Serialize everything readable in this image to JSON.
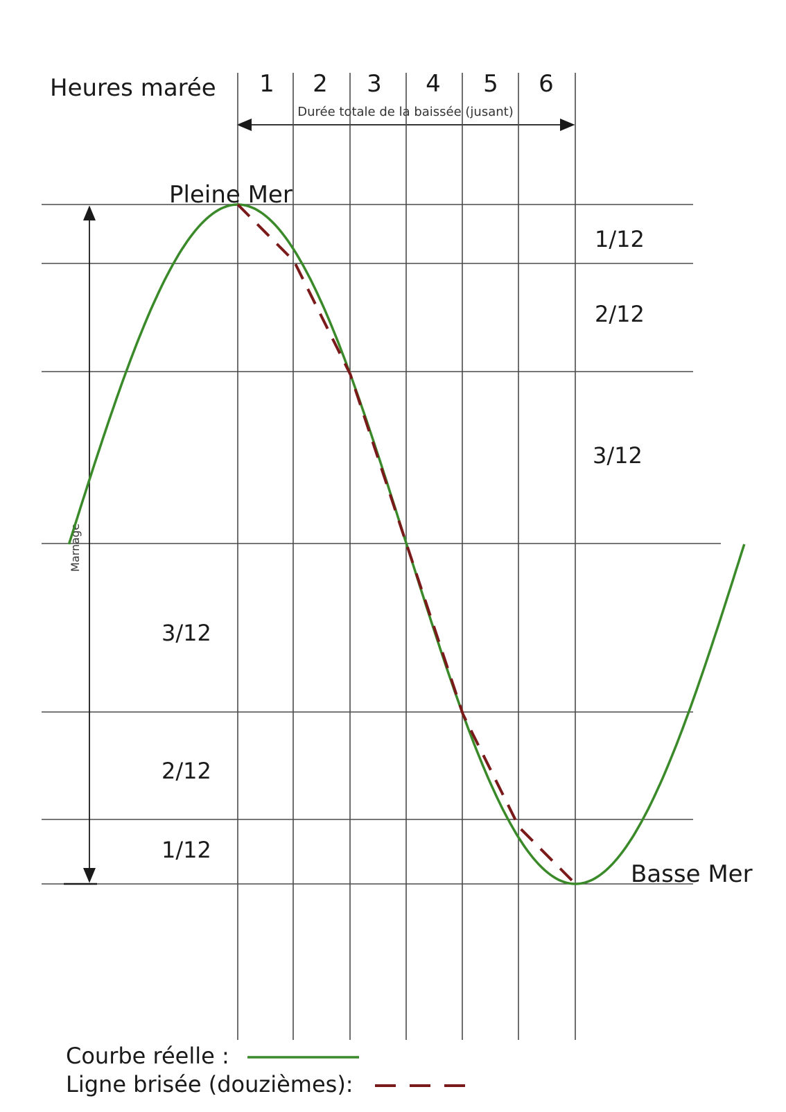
{
  "header": {
    "title": "Heures marée",
    "hours": [
      "1",
      "2",
      "3",
      "4",
      "5",
      "6"
    ],
    "duration_label": "Durée totale de la baissée (jusant)"
  },
  "labels": {
    "high_tide": "Pleine Mer",
    "low_tide": "Basse Mer",
    "range": "Marnage"
  },
  "fractions_right": [
    "1/12",
    "2/12",
    "3/12"
  ],
  "fractions_left": [
    "3/12",
    "2/12",
    "1/12"
  ],
  "legend": {
    "real_curve": "Courbe réelle :",
    "broken_line": "Ligne brisée (douzièmes):"
  },
  "colors": {
    "real_curve": "#3a8a2a",
    "broken_line": "#7a1a1a",
    "grid": "#4a4a4a"
  },
  "chart_data": {
    "type": "line",
    "x_unit": "hours after high tide",
    "y_unit": "twelfths of tidal range",
    "series": [
      {
        "name": "Courbe réelle",
        "style": "solid",
        "x": [
          -3,
          -2,
          -1,
          0,
          1,
          2,
          3,
          4,
          5,
          6,
          7,
          8,
          9
        ],
        "y": [
          6,
          9,
          11,
          12,
          11,
          9,
          6,
          3,
          1,
          0,
          1,
          3,
          6
        ]
      },
      {
        "name": "Ligne brisée (douzièmes)",
        "style": "dashed",
        "x": [
          0,
          1,
          2,
          3,
          4,
          5,
          6
        ],
        "y": [
          12,
          11,
          9,
          6,
          3,
          1,
          0
        ]
      }
    ]
  }
}
